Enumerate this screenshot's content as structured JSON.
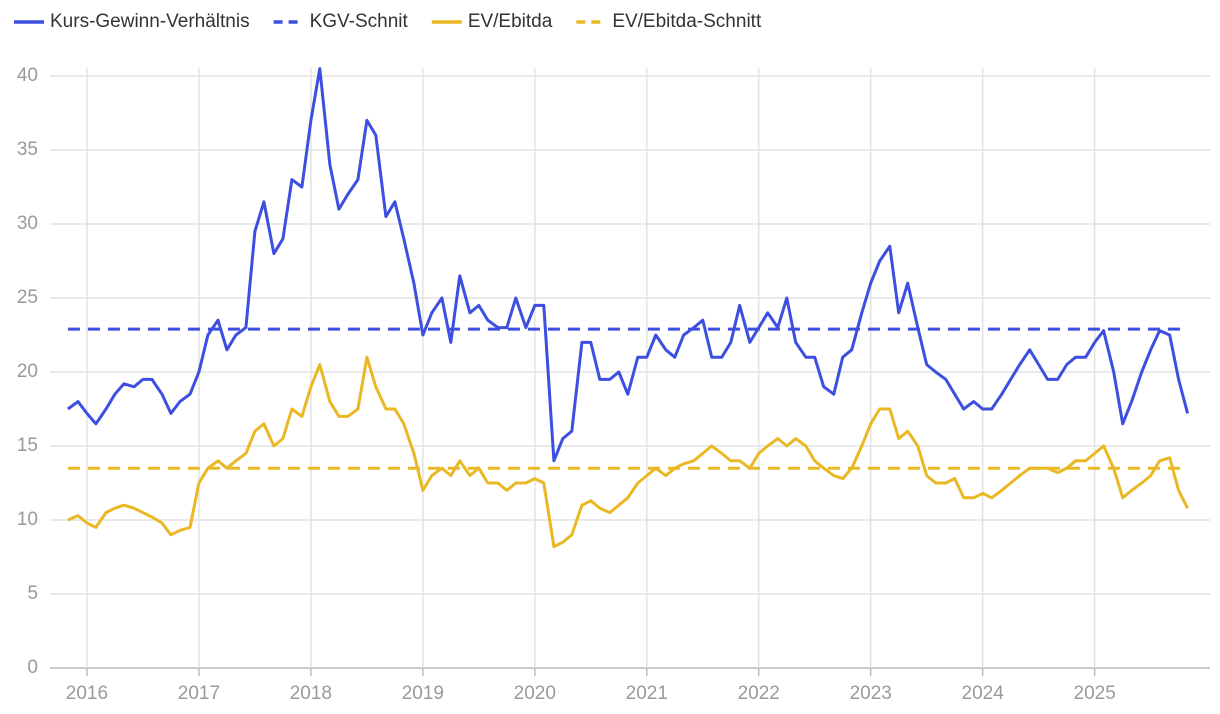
{
  "chart_data": {
    "type": "line",
    "x": [
      2015.83,
      2015.92,
      2016.0,
      2016.08,
      2016.17,
      2016.25,
      2016.33,
      2016.42,
      2016.5,
      2016.58,
      2016.67,
      2016.75,
      2016.83,
      2016.92,
      2017.0,
      2017.08,
      2017.17,
      2017.25,
      2017.33,
      2017.42,
      2017.5,
      2017.58,
      2017.67,
      2017.75,
      2017.83,
      2017.92,
      2018.0,
      2018.08,
      2018.17,
      2018.25,
      2018.33,
      2018.42,
      2018.5,
      2018.58,
      2018.67,
      2018.75,
      2018.83,
      2018.92,
      2019.0,
      2019.08,
      2019.17,
      2019.25,
      2019.33,
      2019.42,
      2019.5,
      2019.58,
      2019.67,
      2019.75,
      2019.83,
      2019.92,
      2020.0,
      2020.08,
      2020.17,
      2020.25,
      2020.33,
      2020.42,
      2020.5,
      2020.58,
      2020.67,
      2020.75,
      2020.83,
      2020.92,
      2021.0,
      2021.08,
      2021.17,
      2021.25,
      2021.33,
      2021.42,
      2021.5,
      2021.58,
      2021.67,
      2021.75,
      2021.83,
      2021.92,
      2022.0,
      2022.08,
      2022.17,
      2022.25,
      2022.33,
      2022.42,
      2022.5,
      2022.58,
      2022.67,
      2022.75,
      2022.83,
      2022.92,
      2023.0,
      2023.08,
      2023.17,
      2023.25,
      2023.33,
      2023.42,
      2023.5,
      2023.58,
      2023.67,
      2023.75,
      2023.83,
      2023.92,
      2024.0,
      2024.08,
      2024.17,
      2024.25,
      2024.33,
      2024.42,
      2024.5,
      2024.58,
      2024.67,
      2024.75,
      2024.83,
      2024.92,
      2025.0,
      2025.08,
      2025.17,
      2025.25,
      2025.33,
      2025.42,
      2025.5,
      2025.58,
      2025.67,
      2025.75,
      2025.83
    ],
    "series": [
      {
        "name": "Kurs-Gewinn-Verhältnis",
        "color": "#3d4fe0",
        "values": [
          17.5,
          18,
          17.2,
          16.5,
          17.5,
          18.5,
          19.2,
          19,
          19.5,
          19.5,
          18.5,
          17.2,
          18,
          18.5,
          20,
          22.5,
          23.5,
          21.5,
          22.5,
          23,
          29.5,
          31.5,
          28,
          29,
          33,
          32.5,
          37,
          40.5,
          34,
          31,
          32,
          33,
          37,
          36,
          30.5,
          31.5,
          29,
          26,
          22.5,
          24,
          25,
          22,
          26.5,
          24,
          24.5,
          23.5,
          23,
          23,
          25,
          23,
          24.5,
          24.5,
          14,
          15.5,
          16,
          22,
          22,
          19.5,
          19.5,
          20,
          18.5,
          21,
          21,
          22.5,
          21.5,
          21,
          22.5,
          23,
          23.5,
          21,
          21,
          22,
          24.5,
          22,
          23,
          24,
          23,
          25,
          22,
          21,
          21,
          19,
          18.5,
          21,
          21.5,
          24,
          26,
          27.5,
          28.5,
          24,
          26,
          23,
          20.5,
          20,
          19.5,
          18.5,
          17.5,
          18,
          17.5,
          17.5,
          18.5,
          19.5,
          20.5,
          21.5,
          20.5,
          19.5,
          19.5,
          20.5,
          21,
          21,
          22,
          22.8,
          20,
          16.5,
          18,
          20,
          21.5,
          22.8,
          22.5,
          19.5,
          17.2
        ]
      },
      {
        "name": "KGV-Schnit",
        "color": "#3d4fe0",
        "dashed": true,
        "value": 22.9
      },
      {
        "name": "EV/Ebitda",
        "color": "#e9b824",
        "values": [
          10,
          10.3,
          9.8,
          9.5,
          10.5,
          10.8,
          11,
          10.8,
          10.5,
          10.2,
          9.8,
          9,
          9.3,
          9.5,
          12.5,
          13.5,
          14,
          13.5,
          14,
          14.5,
          16,
          16.5,
          15,
          15.5,
          17.5,
          17,
          19,
          20.5,
          18,
          17,
          17,
          17.5,
          21,
          19,
          17.5,
          17.5,
          16.5,
          14.5,
          12,
          13,
          13.5,
          13,
          14,
          13,
          13.5,
          12.5,
          12.5,
          12,
          12.5,
          12.5,
          12.8,
          12.5,
          8.2,
          8.5,
          9,
          11,
          11.3,
          10.8,
          10.5,
          11,
          11.5,
          12.5,
          13,
          13.5,
          13,
          13.5,
          13.8,
          14,
          14.5,
          15,
          14.5,
          14,
          14,
          13.5,
          14.5,
          15,
          15.5,
          15,
          15.5,
          15,
          14,
          13.5,
          13,
          12.8,
          13.5,
          15,
          16.5,
          17.5,
          17.5,
          15.5,
          16,
          15,
          13,
          12.5,
          12.5,
          12.8,
          11.5,
          11.5,
          11.8,
          11.5,
          12,
          12.5,
          13,
          13.5,
          13.5,
          13.5,
          13.2,
          13.5,
          14,
          14,
          14.5,
          15,
          13.5,
          11.5,
          12,
          12.5,
          13,
          14,
          14.2,
          12,
          10.8
        ]
      },
      {
        "name": "EV/Ebitda-Schnitt",
        "color": "#e9b824",
        "dashed": true,
        "value": 13.5
      }
    ],
    "xlim": [
      2015.67,
      2026.03
    ],
    "xticks": [
      2016,
      2017,
      2018,
      2019,
      2020,
      2021,
      2022,
      2023,
      2024,
      2025
    ],
    "ylim": [
      0,
      40
    ],
    "yticks": [
      0,
      5,
      10,
      15,
      20,
      25,
      30,
      35,
      40
    ],
    "grid": true,
    "legend": "top-left"
  }
}
